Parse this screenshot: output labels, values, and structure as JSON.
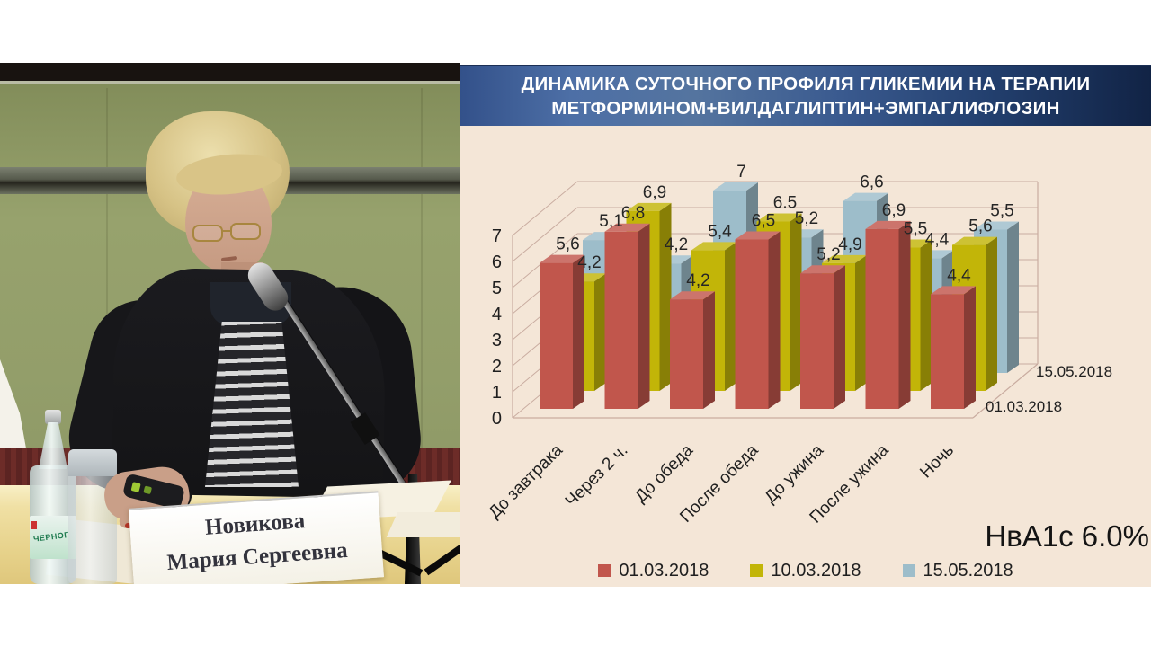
{
  "photo": {
    "nameplate": {
      "line1": "Новикова",
      "line2": "Мария Сергеевна"
    },
    "bottle_label": "ЧЕРНОГ"
  },
  "slide": {
    "title_line1": "ДИНАМИКА СУТОЧНОГО ПРОФИЛЯ ГЛИКЕМИИ НА ТЕРАПИИ",
    "title_line2": "МЕТФОРМИНОМ+ВИЛДАГЛИПТИН+ЭМПАГЛИФЛОЗИН",
    "hba1c_note": "НвА1с 6.0%",
    "colors": {
      "title_band_dark": "#16284a",
      "title_band_light": "#54749f",
      "slide_background": "#f4e6d7"
    }
  },
  "chart_data": {
    "type": "bar",
    "projection": "3d-clustered-column",
    "title": "ДИНАМИКА СУТОЧНОГО ПРОФИЛЯ ГЛИКЕМИИ НА ТЕРАПИИ МЕТФОРМИНОМ+ВИЛДАГЛИПТИН+ЭМПАГЛИФЛОЗИН",
    "categories": [
      "До завтрака",
      "Через 2 ч.",
      "До обеда",
      "После обеда",
      "До ужина",
      "После ужина",
      "Ночь"
    ],
    "series": [
      {
        "name": "01.03.2018",
        "color": "#c1564c",
        "values": [
          5.6,
          6.8,
          4.2,
          6.5,
          5.2,
          6.9,
          4.4
        ],
        "data_labels": [
          "5,6",
          "6,8",
          "4,2",
          "6,5",
          "5,2",
          "6,9",
          "4,4"
        ]
      },
      {
        "name": "10.03.2018",
        "color": "#c2b508",
        "values": [
          4.2,
          6.9,
          5.4,
          6.5,
          4.9,
          5.5,
          5.6
        ],
        "data_labels": [
          "4,2",
          "6,9",
          "5,4",
          "6.5",
          "4,9",
          "5,5",
          "5,6"
        ]
      },
      {
        "name": "15.05.2018",
        "color": "#9dbdca",
        "values": [
          5.1,
          4.2,
          7.0,
          5.2,
          6.6,
          4.4,
          5.5
        ],
        "data_labels": [
          "5,1",
          "4,2",
          "7",
          "5,2",
          "6,6",
          "4,4",
          "5,5"
        ]
      }
    ],
    "ylim": [
      0,
      7
    ],
    "yticks": [
      "0",
      "1",
      "2",
      "3",
      "4",
      "5",
      "6",
      "7"
    ],
    "depth_axis_labels": [
      "01.03.2018",
      "15.05.2018"
    ],
    "legend_position": "bottom",
    "grid": true,
    "annotation": "НвА1с 6.0%"
  }
}
